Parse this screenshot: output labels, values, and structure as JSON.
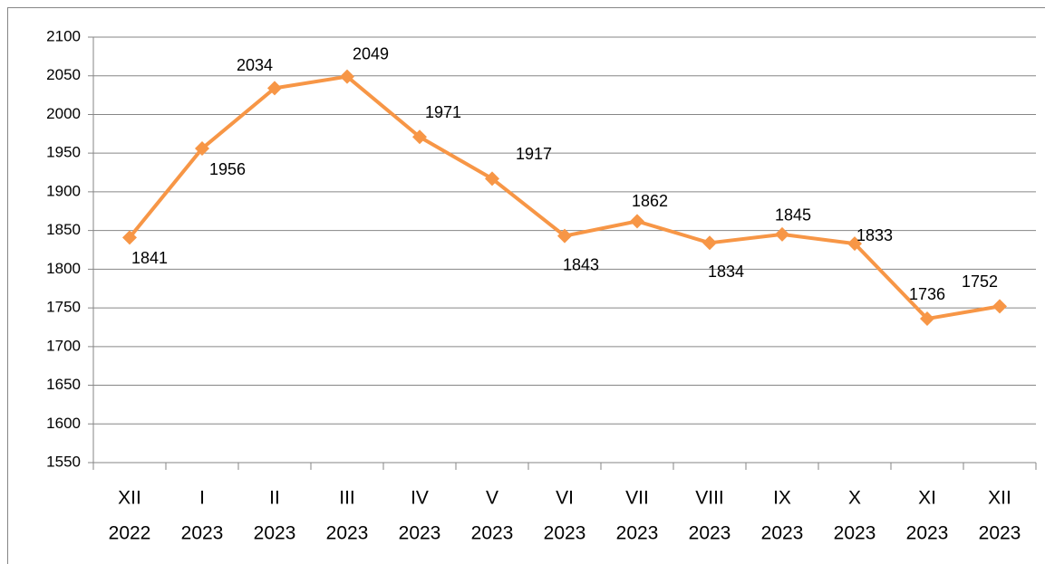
{
  "chart_data": {
    "type": "line",
    "categories": [
      [
        "XII",
        "2022"
      ],
      [
        "I",
        "2023"
      ],
      [
        "II",
        "2023"
      ],
      [
        "III",
        "2023"
      ],
      [
        "IV",
        "2023"
      ],
      [
        "V",
        "2023"
      ],
      [
        "VI",
        "2023"
      ],
      [
        "VII",
        "2023"
      ],
      [
        "VIII",
        "2023"
      ],
      [
        "IX",
        "2023"
      ],
      [
        "X",
        "2023"
      ],
      [
        "XI",
        "2023"
      ],
      [
        "XII",
        "2023"
      ]
    ],
    "series": [
      {
        "color": "#f79646",
        "values": [
          1841,
          1956,
          2034,
          2049,
          1971,
          1917,
          1843,
          1862,
          1834,
          1845,
          1833,
          1736,
          1752
        ]
      }
    ],
    "ylim": [
      1550,
      2100
    ],
    "yticks": [
      1550,
      1600,
      1650,
      1700,
      1750,
      1800,
      1850,
      1900,
      1950,
      2000,
      2050,
      2100
    ],
    "grid": true
  }
}
